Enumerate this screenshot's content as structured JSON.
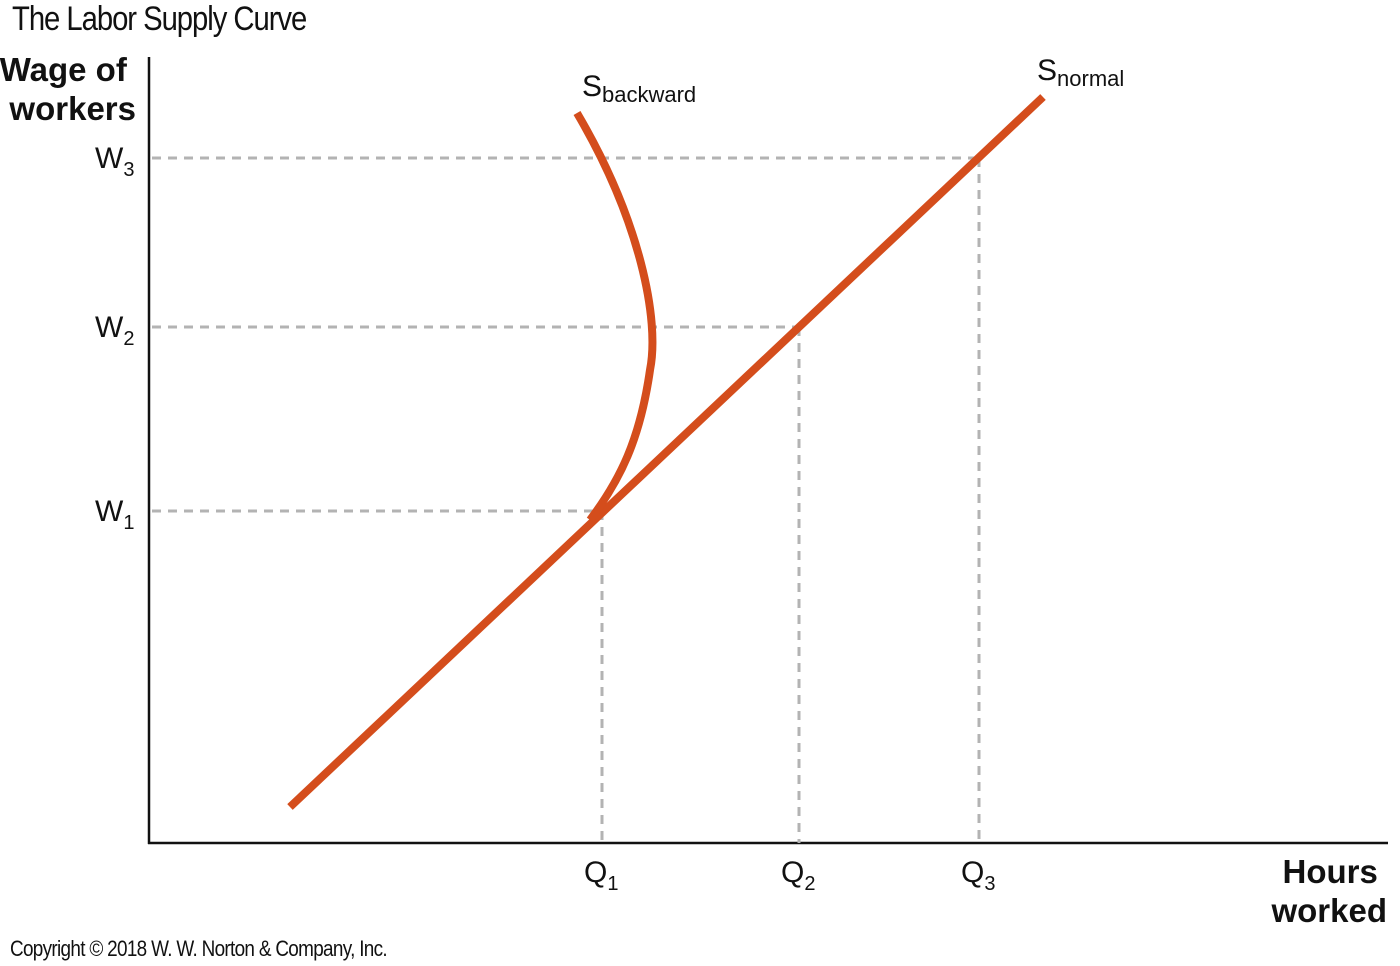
{
  "title": "The Labor Supply Curve",
  "copyright": "Copyright © 2018 W. W. Norton & Company, Inc.",
  "colors": {
    "curve": "#d44d1c",
    "guide": "#b3b3b3",
    "axis": "#111111"
  },
  "diagram": {
    "y_axis_label": [
      "Wage of",
      "workers"
    ],
    "x_axis_label": [
      "Hours",
      "worked"
    ],
    "wage_levels": [
      {
        "main": "W",
        "sub": "1"
      },
      {
        "main": "W",
        "sub": "2"
      },
      {
        "main": "W",
        "sub": "3"
      }
    ],
    "quantity_levels": [
      {
        "main": "Q",
        "sub": "1"
      },
      {
        "main": "Q",
        "sub": "2"
      },
      {
        "main": "Q",
        "sub": "3"
      }
    ],
    "curves": [
      {
        "main": "S",
        "sub": "normal"
      },
      {
        "main": "S",
        "sub": "backward"
      }
    ]
  }
}
